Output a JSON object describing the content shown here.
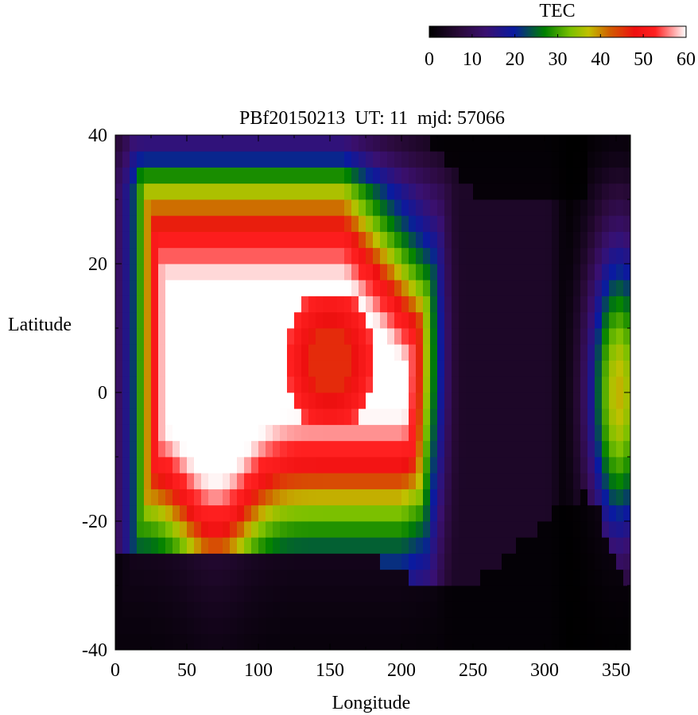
{
  "chart_data": {
    "type": "heatmap",
    "title": "PBf20150213  UT: 11  mjd: 57066",
    "xlabel": "Longitude",
    "ylabel": "Latitude",
    "xlim": [
      0,
      360
    ],
    "ylim": [
      -40,
      40
    ],
    "x_ticks": [
      "0",
      "50",
      "100",
      "150",
      "200",
      "250",
      "300",
      "350"
    ],
    "y_ticks": [
      "-40",
      "-20",
      "0",
      "20",
      "40"
    ],
    "grid": false,
    "colorbar": {
      "label": "TEC",
      "range": [
        0,
        60
      ],
      "ticks": [
        "0",
        "10",
        "20",
        "30",
        "40",
        "50",
        "60"
      ],
      "stops": [
        [
          0,
          "#000000"
        ],
        [
          0.12,
          "#2a0a3a"
        ],
        [
          0.22,
          "#3a1070"
        ],
        [
          0.33,
          "#0a1aa0"
        ],
        [
          0.45,
          "#008000"
        ],
        [
          0.55,
          "#7ac000"
        ],
        [
          0.62,
          "#c0c000"
        ],
        [
          0.7,
          "#d06000"
        ],
        [
          0.8,
          "#ee1010"
        ],
        [
          0.88,
          "#ff2020"
        ],
        [
          0.94,
          "#ff9090"
        ],
        [
          1,
          "#ffffff"
        ]
      ]
    },
    "grid_resolution": {
      "dlon": 5,
      "dlat": 2.5
    },
    "features": {
      "core": {
        "lon_range": [
          30,
          195
        ],
        "lat_range": [
          -12,
          22
        ],
        "peak_tec": 60
      },
      "notch": {
        "lon": 150,
        "lat": 5,
        "tec": 48
      },
      "southern_dip": {
        "lon": 90,
        "lat": -20
      },
      "trough": {
        "lon_range": [
          240,
          300
        ],
        "tec": 5
      },
      "east_band": {
        "lon": 350,
        "tec": 35
      }
    }
  }
}
